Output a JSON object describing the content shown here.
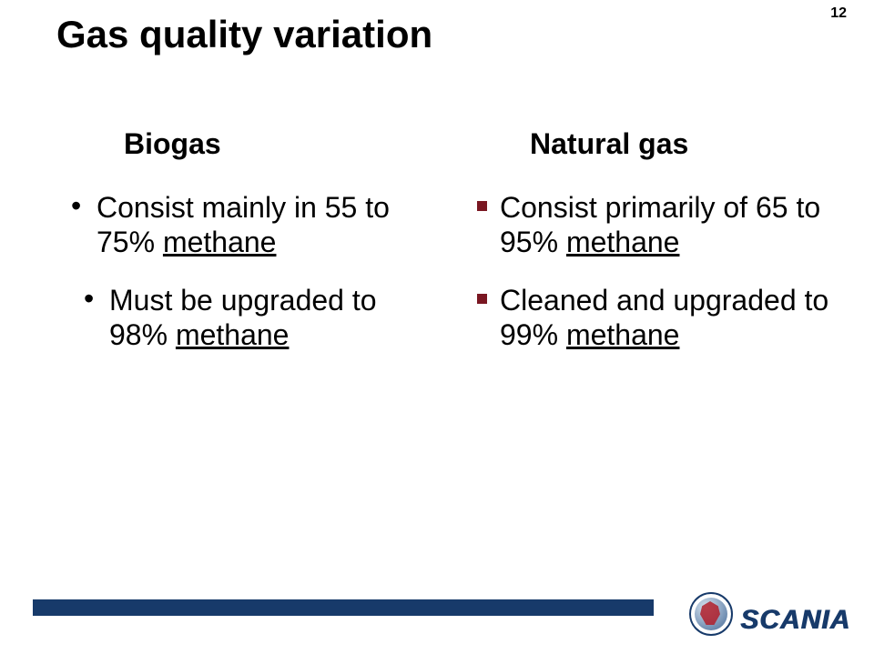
{
  "page_number": "12",
  "title": "Gas quality variation",
  "colors": {
    "square_bullet": "#7a1722",
    "footer_bar": "#173a6a",
    "logo_text": "#173a6a"
  },
  "left": {
    "heading": "Biogas",
    "items": [
      {
        "prefix": "Consist mainly in 55 to 75% ",
        "underlined": "methane",
        "suffix": "",
        "indent": false
      },
      {
        "prefix": "Must be upgraded to 98% ",
        "underlined": "methane",
        "suffix": "",
        "indent": true
      }
    ]
  },
  "right": {
    "heading": "Natural gas",
    "items": [
      {
        "prefix": "Consist primarily of 65 to 95% ",
        "underlined": "methane",
        "suffix": ""
      },
      {
        "prefix": "Cleaned and upgraded to 99% ",
        "underlined": "methane",
        "suffix": ""
      }
    ]
  },
  "logo_text": "SCANIA"
}
